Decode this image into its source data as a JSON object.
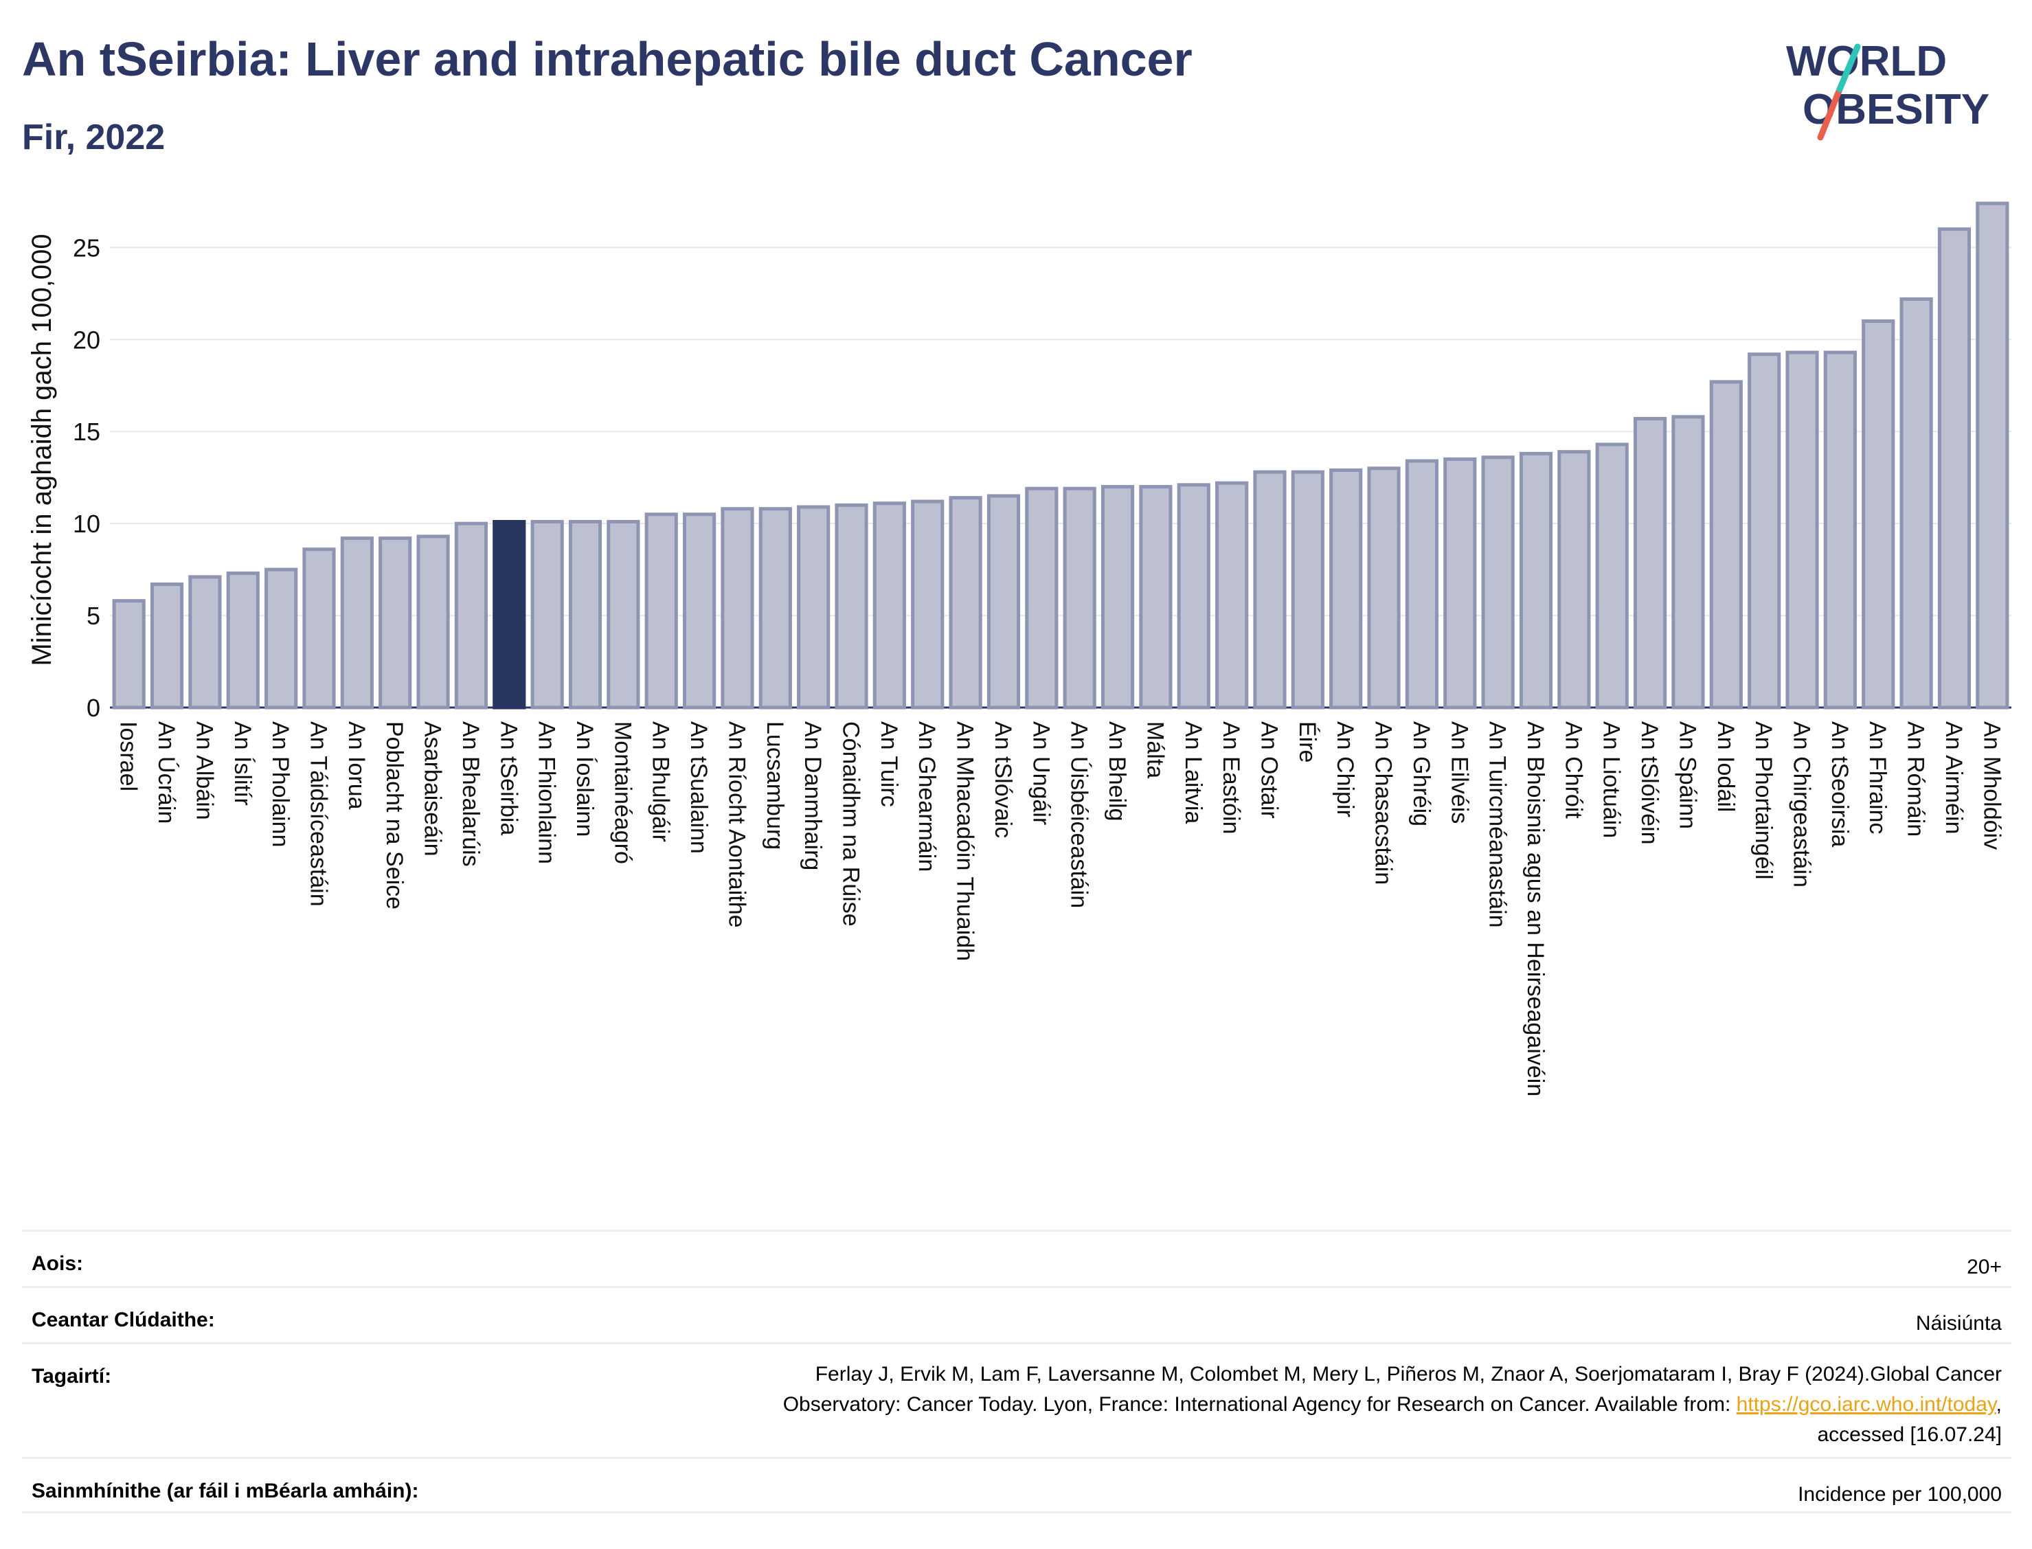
{
  "header": {
    "title": "An tSeirbia: Liver and intrahepatic bile duct Cancer",
    "subtitle": "Fir, 2022"
  },
  "logo": {
    "line1": "WORLD",
    "line2": "OBESITY"
  },
  "colors": {
    "bar": "#bcc0d0",
    "bar_stroke": "#8e95b2",
    "highlight": "#283660",
    "title": "#2c3766",
    "accent_teal": "#2ec4b6",
    "accent_coral": "#e8604c"
  },
  "chart_data": {
    "type": "bar",
    "ylabel": "Minicíocht in aghaidh gach 100,000",
    "ylim": [
      0,
      28
    ],
    "yticks": [
      0,
      5,
      10,
      15,
      20,
      25
    ],
    "grid": true,
    "highlight": "An tSeirbia",
    "categories": [
      "Iosrael",
      "An Úcráin",
      "An Albáin",
      "An Íslitír",
      "An Pholainn",
      "An Táidsíceastáin",
      "An Iorua",
      "Poblacht na Seice",
      "Asarbaiseáin",
      "An Bhealarúis",
      "An tSeirbia",
      "An Fhionlainn",
      "An Íoslainn",
      "Montainéagró",
      "An Bhulgáir",
      "An tSualainn",
      "An Ríocht Aontaithe",
      "Lucsamburg",
      "An Danmhairg",
      "Cónaidhm na Rúise",
      "An Tuirc",
      "An Ghearmáin",
      "An Mhacadóin Thuaidh",
      "An tSlóvaic",
      "An Ungáir",
      "An Úisbéiceastáin",
      "An Bheilg",
      "Málta",
      "An Laitvia",
      "An Eastóin",
      "An Ostair",
      "Éire",
      "An Chipir",
      "An Chasacstáin",
      "An Ghréig",
      "An Eilvéis",
      "An Tuircméanastáin",
      "An Bhoisnia agus an Heirseagaivéin",
      "An Chróit",
      "An Liotuáin",
      "An tSlóivéin",
      "An Spáinn",
      "An Iodáil",
      "An Phortaingéil",
      "An Chirgeastáin",
      "An tSeoirsia",
      "An Fhrainc",
      "An Rómáin",
      "An Airméin",
      "An Mholdóiv"
    ],
    "values": [
      5.8,
      6.7,
      7.1,
      7.3,
      7.5,
      8.6,
      9.2,
      9.2,
      9.3,
      10.0,
      10.1,
      10.1,
      10.1,
      10.1,
      10.5,
      10.5,
      10.8,
      10.8,
      10.9,
      11.0,
      11.1,
      11.2,
      11.4,
      11.5,
      11.9,
      11.9,
      12.0,
      12.0,
      12.1,
      12.2,
      12.8,
      12.8,
      12.9,
      13.0,
      13.4,
      13.5,
      13.6,
      13.8,
      13.9,
      14.3,
      15.7,
      15.8,
      17.7,
      19.2,
      19.3,
      19.3,
      21.0,
      22.2,
      26.0,
      27.4
    ]
  },
  "meta": [
    {
      "key": "Aois:",
      "value": "20+"
    },
    {
      "key": "Ceantar Clúdaithe:",
      "value": "Náisiúnta"
    },
    {
      "key": "Tagairtí:",
      "line1": "Ferlay J, Ervik M, Lam F, Laversanne M, Colombet M, Mery L, Piñeros M, Znaor A, Soerjomataram I, Bray F (2024).Global Cancer",
      "line2_prefix": "Observatory: Cancer Today. Lyon, France: International Agency for Research on Cancer. Available from: ",
      "link": "https://gco.iarc.who.int/today",
      "line2_suffix": ",",
      "line3": "accessed [16.07.24]"
    },
    {
      "key": "Sainmhínithe (ar fáil i mBéarla amháin):",
      "value": "Incidence per 100,000"
    }
  ]
}
